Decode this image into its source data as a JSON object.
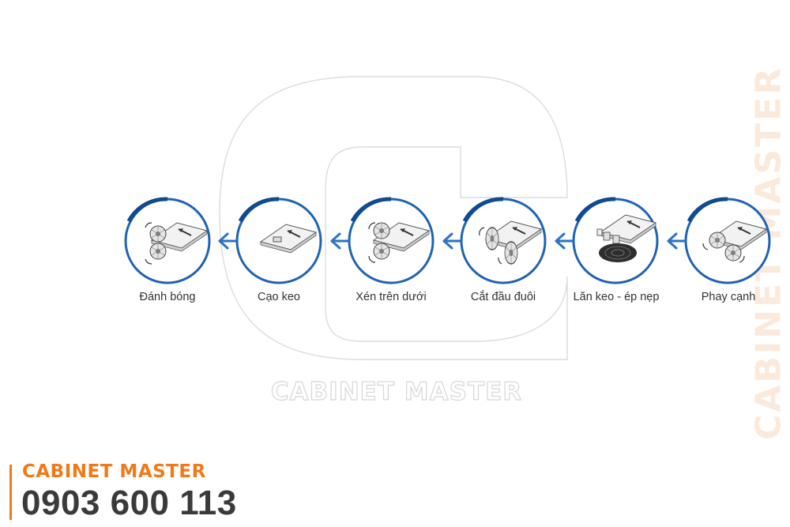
{
  "watermark": {
    "text": "CABINET MASTER",
    "side_text": "CABINET MASTER"
  },
  "steps": [
    {
      "label": "Đánh bóng",
      "icon": "buffing-wheels-icon"
    },
    {
      "label": "Cạo keo",
      "icon": "glue-scraper-icon"
    },
    {
      "label": "Xén trên dưới",
      "icon": "top-bottom-trimming-icon"
    },
    {
      "label": "Cắt đầu đuôi",
      "icon": "end-cutting-saw-icon"
    },
    {
      "label": "Lăn keo - ép nẹp",
      "icon": "glue-roller-edge-press-icon"
    },
    {
      "label": "Phay cạnh",
      "icon": "edge-milling-cutter-icon"
    }
  ],
  "flow_direction": "right-to-left",
  "brand": {
    "name": "CABINET MASTER",
    "phone": "0903 600 113"
  },
  "colors": {
    "circle_blue": "#1f63b4",
    "arrow_blue": "#2a73c6",
    "brand_orange": "#f07a1a",
    "phone_gray": "#3a3a3a",
    "watermark_gray": "#d6d6d6",
    "side_watermark": "#fbe9dc"
  }
}
